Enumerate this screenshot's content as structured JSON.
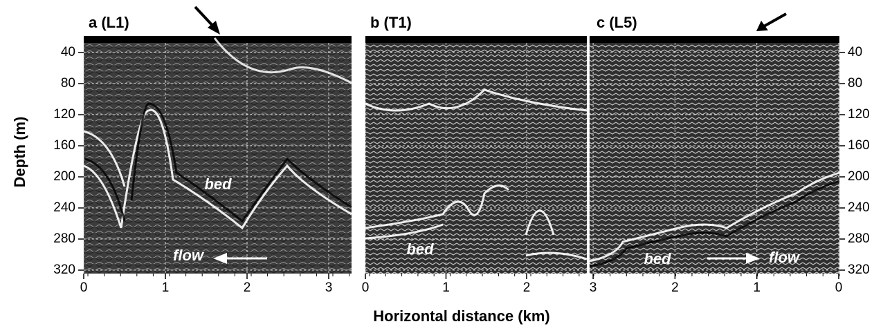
{
  "figure": {
    "y_label": "Depth (m)",
    "x_label": "Horizontal distance (km)",
    "yticks": [
      40,
      80,
      120,
      160,
      200,
      240,
      280,
      320
    ],
    "panels": [
      {
        "label": "a (L1)",
        "xticks": [
          0,
          1,
          2,
          3
        ],
        "annotations": [
          "bed",
          "flow"
        ]
      },
      {
        "label": "b (T1)",
        "xticks": [
          0,
          1,
          2
        ],
        "annotations": [
          "bed"
        ]
      },
      {
        "label": "c (L5)",
        "xticks": [
          3,
          2,
          1,
          0
        ],
        "annotations": [
          "bed",
          "flow"
        ]
      }
    ]
  }
}
